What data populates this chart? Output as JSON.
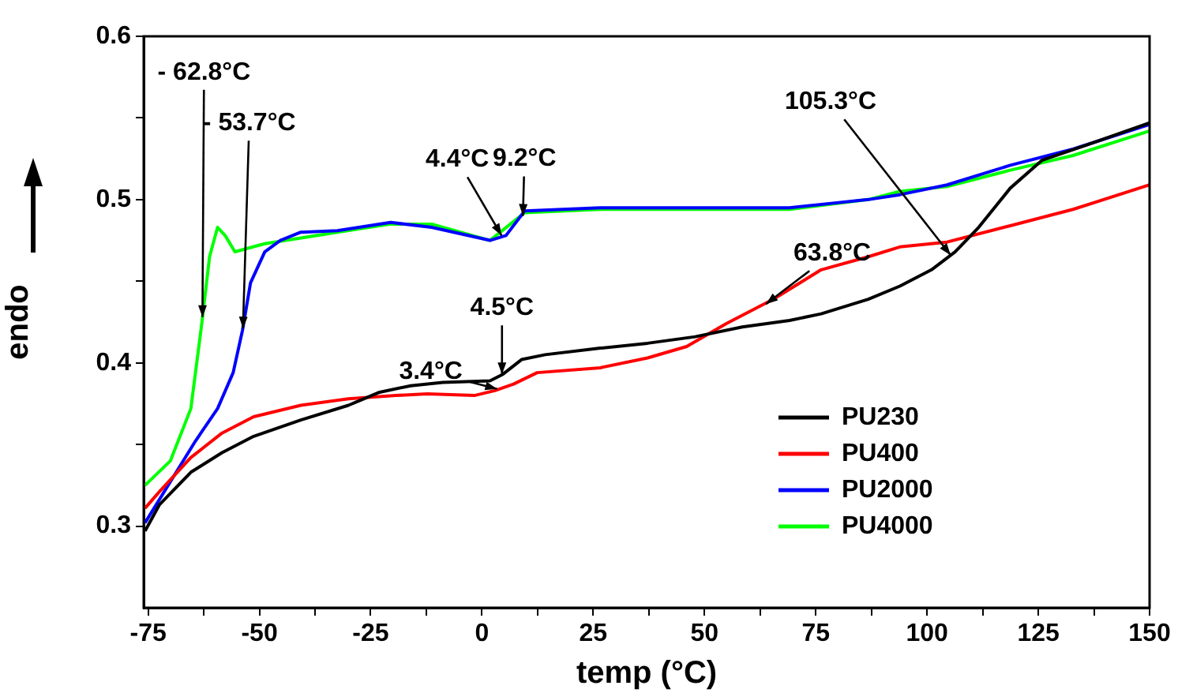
{
  "chart_data": {
    "type": "line",
    "xlabel": "temp (°C)",
    "ylabel": "endo",
    "xlim": [
      -76,
      150
    ],
    "ylim": [
      0.25,
      0.6
    ],
    "xticks": [
      -75,
      {
        "value": -62.5,
        "label": null
      },
      -50,
      {
        "value": -37.5,
        "label": null
      },
      -25,
      {
        "value": -12.5,
        "label": null
      },
      0,
      {
        "value": 12.5,
        "label": null
      },
      25,
      {
        "value": 37.5,
        "label": null
      },
      50,
      {
        "value": 62.5,
        "label": null
      },
      75,
      {
        "value": 87.5,
        "label": null
      },
      100,
      {
        "value": 112.5,
        "label": null
      },
      125,
      {
        "value": 137.5,
        "label": null
      },
      150
    ],
    "yticks": [
      0.3,
      {
        "value": 0.35,
        "label": null
      },
      0.4,
      {
        "value": 0.45,
        "label": null
      },
      0.5,
      {
        "value": 0.55,
        "label": null
      },
      0.6
    ],
    "grid": false,
    "legend": "bottom right",
    "marker": "none",
    "line_style": "solid",
    "series": [
      {
        "name": "PU230",
        "color": "#000000",
        "x": [
          -75.7,
          -72.5,
          -65.4,
          -58.4,
          -51.3,
          -40.7,
          -30,
          -23,
          -16,
          -8.8,
          1.8,
          4.7,
          8.9,
          14.2,
          26.6,
          37.2,
          47.9,
          58.5,
          69.1,
          76.2,
          86.8,
          93.9,
          101,
          106.3,
          111.6,
          118.7,
          125.8,
          136.4,
          150
        ],
        "values": [
          0.297,
          0.313,
          0.333,
          0.345,
          0.355,
          0.365,
          0.374,
          0.382,
          0.386,
          0.388,
          0.389,
          0.393,
          0.402,
          0.405,
          0.409,
          0.412,
          0.416,
          0.422,
          0.426,
          0.43,
          0.439,
          0.447,
          0.457,
          0.468,
          0.483,
          0.507,
          0.524,
          0.534,
          0.547
        ]
      },
      {
        "name": "PU400",
        "color": "#ff0000",
        "x": [
          -75.7,
          -72.5,
          -65.4,
          -58.4,
          -51.3,
          -40.7,
          -30,
          -19.4,
          -12.3,
          -1.7,
          2.9,
          7.1,
          12.4,
          26.6,
          37.2,
          46,
          54.9,
          65.5,
          76.2,
          86.8,
          93.9,
          104.5,
          118.7,
          132.8,
          150
        ],
        "values": [
          0.311,
          0.321,
          0.342,
          0.357,
          0.367,
          0.374,
          0.378,
          0.38,
          0.381,
          0.38,
          0.383,
          0.387,
          0.394,
          0.397,
          0.403,
          0.41,
          0.424,
          0.439,
          0.457,
          0.465,
          0.471,
          0.474,
          0.484,
          0.494,
          0.509
        ]
      },
      {
        "name": "PU2000",
        "color": "#0000ff",
        "x": [
          -75.7,
          -64.4,
          -59.4,
          -55.9,
          -53.8,
          -52,
          -48.8,
          -45.3,
          -40.7,
          -32.5,
          -20.5,
          -11.3,
          1.8,
          5.4,
          9.6,
          26.6,
          47.9,
          69.1,
          86.8,
          93.9,
          104.5,
          118.7,
          132.9,
          150
        ],
        "values": [
          0.302,
          0.352,
          0.372,
          0.394,
          0.42,
          0.449,
          0.468,
          0.475,
          0.48,
          0.481,
          0.486,
          0.483,
          0.475,
          0.478,
          0.493,
          0.495,
          0.495,
          0.495,
          0.5,
          0.503,
          0.509,
          0.521,
          0.531,
          0.546
        ]
      },
      {
        "name": "PU4000",
        "color": "#00ff00",
        "x": [
          -75.7,
          -70,
          -65.4,
          -63,
          -61.2,
          -59.4,
          -57.7,
          -55.5,
          -48.8,
          -32.5,
          -20.5,
          -11.3,
          1.8,
          9.6,
          26.6,
          47.9,
          69.1,
          86.8,
          93.9,
          104.5,
          118.7,
          132.8,
          150
        ],
        "values": [
          0.325,
          0.34,
          0.372,
          0.423,
          0.465,
          0.483,
          0.478,
          0.468,
          0.473,
          0.48,
          0.485,
          0.485,
          0.475,
          0.492,
          0.494,
          0.494,
          0.494,
          0.5,
          0.505,
          0.508,
          0.518,
          0.527,
          0.542
        ]
      }
    ],
    "annotations": [
      {
        "text": "- 62.8°C",
        "x": -62.8,
        "y": 0.428
      },
      {
        "text": "- 53.7°C",
        "x": -53.7,
        "y": 0.421
      },
      {
        "text": "4.4°C",
        "x": 4.4,
        "y": 0.478
      },
      {
        "text": "9.2°C",
        "x": 9.2,
        "y": 0.49
      },
      {
        "text": "3.4°C",
        "x": 3.4,
        "y": 0.384
      },
      {
        "text": "4.5°C",
        "x": 4.5,
        "y": 0.393
      },
      {
        "text": "63.8°C",
        "x": 63.8,
        "y": 0.436
      },
      {
        "text": "105.3°C",
        "x": 105.3,
        "y": 0.466
      }
    ]
  }
}
